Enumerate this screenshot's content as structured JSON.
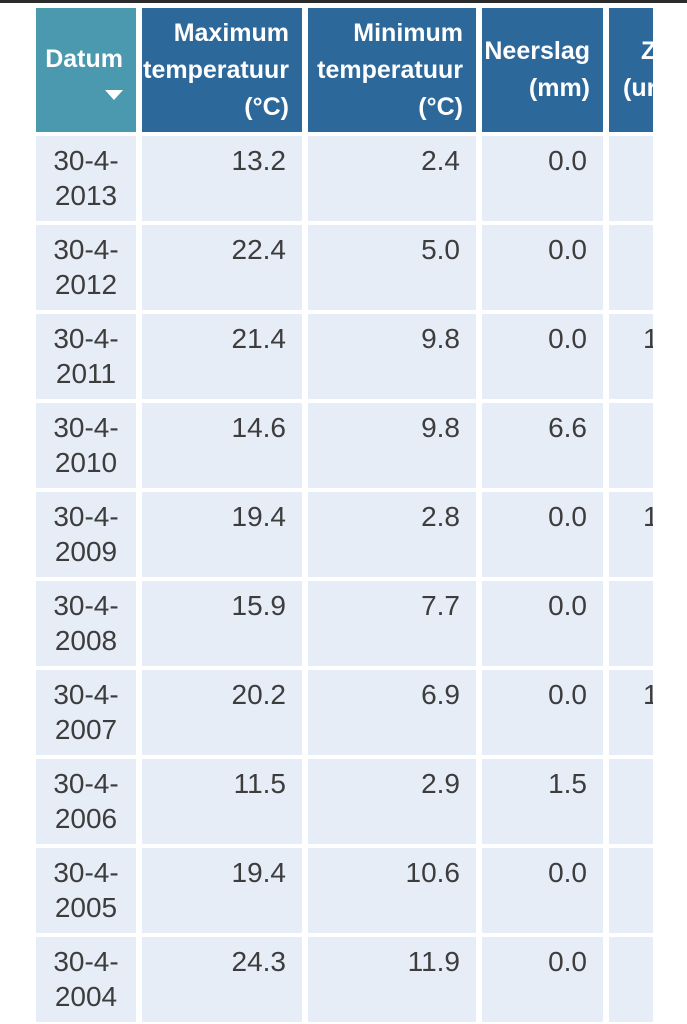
{
  "colors": {
    "top_border": "#2b2b2b",
    "header_blue": "#2d689b",
    "sorted_column_teal": "#4a99ae",
    "header_text": "#ffffff",
    "cell_background": "#e7edf7",
    "body_text": "#3d3d3d"
  },
  "table": {
    "columns": {
      "datum": {
        "label": "Datum",
        "sort_direction": "descending"
      },
      "max": {
        "lines": [
          "Maximum",
          "temperatuur",
          "(°C)"
        ]
      },
      "min": {
        "lines": [
          "Minimum",
          "temperatuur",
          "(°C)"
        ]
      },
      "rain": {
        "lines": [
          "Neerslag",
          "(mm)"
        ]
      },
      "sun": {
        "lines": [
          "Z",
          "(ur"
        ]
      }
    },
    "rows": [
      {
        "date_line1": "30-4-",
        "date_line2": "2013",
        "max": "13.2",
        "min": "2.4",
        "rain": "0.0",
        "sun": ""
      },
      {
        "date_line1": "30-4-",
        "date_line2": "2012",
        "max": "22.4",
        "min": "5.0",
        "rain": "0.0",
        "sun": ""
      },
      {
        "date_line1": "30-4-",
        "date_line2": "2011",
        "max": "21.4",
        "min": "9.8",
        "rain": "0.0",
        "sun": "1"
      },
      {
        "date_line1": "30-4-",
        "date_line2": "2010",
        "max": "14.6",
        "min": "9.8",
        "rain": "6.6",
        "sun": ""
      },
      {
        "date_line1": "30-4-",
        "date_line2": "2009",
        "max": "19.4",
        "min": "2.8",
        "rain": "0.0",
        "sun": "1"
      },
      {
        "date_line1": "30-4-",
        "date_line2": "2008",
        "max": "15.9",
        "min": "7.7",
        "rain": "0.0",
        "sun": ""
      },
      {
        "date_line1": "30-4-",
        "date_line2": "2007",
        "max": "20.2",
        "min": "6.9",
        "rain": "0.0",
        "sun": "1"
      },
      {
        "date_line1": "30-4-",
        "date_line2": "2006",
        "max": "11.5",
        "min": "2.9",
        "rain": "1.5",
        "sun": ""
      },
      {
        "date_line1": "30-4-",
        "date_line2": "2005",
        "max": "19.4",
        "min": "10.6",
        "rain": "0.0",
        "sun": ""
      },
      {
        "date_line1": "30-4-",
        "date_line2": "2004",
        "max": "24.3",
        "min": "11.9",
        "rain": "0.0",
        "sun": ""
      }
    ]
  }
}
